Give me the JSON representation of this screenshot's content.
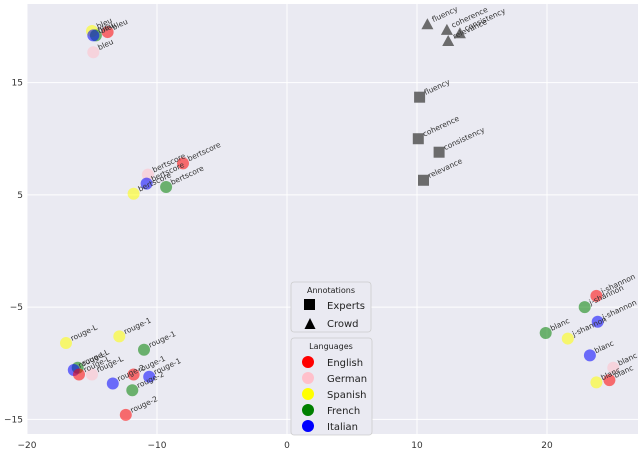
{
  "chart_data": {
    "type": "scatter",
    "xlim": [
      -20,
      27
    ],
    "ylim": [
      -16.3,
      22
    ],
    "x_ticks": [
      -20,
      -10,
      0,
      10,
      20
    ],
    "x_tick_labels": [
      "−20",
      "−10",
      "0",
      "10",
      "20"
    ],
    "y_ticks": [
      -15,
      -5,
      5,
      15
    ],
    "y_tick_labels": [
      "−15",
      "−5",
      "5",
      "15"
    ],
    "grid": true,
    "background": "#eaeaf2",
    "legends": {
      "annotations": {
        "title": "Annotations",
        "items": [
          {
            "label": "Experts",
            "marker": "square"
          },
          {
            "label": "Crowd",
            "marker": "triangle"
          }
        ]
      },
      "languages": {
        "title": "Languages",
        "items": [
          {
            "label": "English",
            "color": "#ff0000"
          },
          {
            "label": "German",
            "color": "#ffc0cb"
          },
          {
            "label": "Spanish",
            "color": "#ffff00"
          },
          {
            "label": "French",
            "color": "#008000"
          },
          {
            "label": "Italian",
            "color": "#0000ff"
          }
        ]
      }
    },
    "points": [
      {
        "x": -15.0,
        "y": 19.6,
        "label": "bleu",
        "lang": "Spanish",
        "color": "#ffff00",
        "marker": "circle"
      },
      {
        "x": -14.7,
        "y": 19.2,
        "label": "bleu",
        "lang": "French",
        "color": "#008000",
        "marker": "circle"
      },
      {
        "x": -14.9,
        "y": 19.2,
        "label": "bleu",
        "lang": "Italian",
        "color": "#0000ff",
        "marker": "circle"
      },
      {
        "x": -13.8,
        "y": 19.5,
        "label": "bleu",
        "lang": "English",
        "color": "#ff0000",
        "marker": "circle"
      },
      {
        "x": -14.9,
        "y": 17.7,
        "label": "bleu",
        "lang": "German",
        "color": "#ffc0cb",
        "marker": "circle"
      },
      {
        "x": -8.0,
        "y": 7.8,
        "label": "bertscore",
        "lang": "English",
        "color": "#ff0000",
        "marker": "circle"
      },
      {
        "x": -10.7,
        "y": 6.8,
        "label": "bertscore",
        "lang": "German",
        "color": "#ffc0cb",
        "marker": "circle"
      },
      {
        "x": -10.8,
        "y": 6.0,
        "label": "bertscore",
        "lang": "Italian",
        "color": "#0000ff",
        "marker": "circle"
      },
      {
        "x": -11.8,
        "y": 5.1,
        "label": "bertscore",
        "lang": "Spanish",
        "color": "#ffff00",
        "marker": "circle"
      },
      {
        "x": -9.3,
        "y": 5.7,
        "label": "bertscore",
        "lang": "French",
        "color": "#008000",
        "marker": "circle"
      },
      {
        "x": -17.0,
        "y": -8.2,
        "label": "rouge-L",
        "lang": "Spanish",
        "color": "#ffff00",
        "marker": "circle"
      },
      {
        "x": -12.9,
        "y": -7.6,
        "label": "rouge-1",
        "lang": "Spanish",
        "color": "#ffff00",
        "marker": "circle"
      },
      {
        "x": -11.0,
        "y": -8.8,
        "label": "rouge-1",
        "lang": "French",
        "color": "#008000",
        "marker": "circle"
      },
      {
        "x": -16.1,
        "y": -10.4,
        "label": "rouge-L",
        "lang": "French",
        "color": "#008000",
        "marker": "circle"
      },
      {
        "x": -16.4,
        "y": -10.6,
        "label": "rouge-L",
        "lang": "Italian",
        "color": "#0000ff",
        "marker": "circle"
      },
      {
        "x": -16.0,
        "y": -11.0,
        "label": "rouge-L",
        "lang": "English",
        "color": "#ff0000",
        "marker": "circle"
      },
      {
        "x": -15.0,
        "y": -11.0,
        "label": "rouge-L",
        "lang": "German",
        "color": "#ffc0cb",
        "marker": "circle"
      },
      {
        "x": -11.8,
        "y": -11.0,
        "label": "rouge-1",
        "lang": "English",
        "color": "#ff0000",
        "marker": "circle"
      },
      {
        "x": -10.6,
        "y": -11.2,
        "label": "rouge-1",
        "lang": "Italian",
        "color": "#0000ff",
        "marker": "circle"
      },
      {
        "x": -13.4,
        "y": -11.8,
        "label": "rouge-2",
        "lang": "Italian",
        "color": "#0000ff",
        "marker": "circle"
      },
      {
        "x": -11.9,
        "y": -12.4,
        "label": "rouge-2",
        "lang": "French",
        "color": "#008000",
        "marker": "circle"
      },
      {
        "x": -12.4,
        "y": -14.6,
        "label": "rouge-2",
        "lang": "English",
        "color": "#ff0000",
        "marker": "circle"
      },
      {
        "x": 10.8,
        "y": 20.2,
        "label": "fluency",
        "marker": "triangle",
        "color": "#555555"
      },
      {
        "x": 12.3,
        "y": 19.7,
        "label": "coherence",
        "marker": "triangle",
        "color": "#555555"
      },
      {
        "x": 13.3,
        "y": 19.4,
        "label": "consistency",
        "marker": "triangle",
        "color": "#555555"
      },
      {
        "x": 12.4,
        "y": 18.7,
        "label": "relevance",
        "marker": "triangle",
        "color": "#555555"
      },
      {
        "x": 10.2,
        "y": 13.7,
        "label": "fluency",
        "marker": "square",
        "color": "#555555"
      },
      {
        "x": 10.1,
        "y": 10.0,
        "label": "coherence",
        "marker": "square",
        "color": "#555555"
      },
      {
        "x": 11.7,
        "y": 8.8,
        "label": "consistency",
        "marker": "square",
        "color": "#555555"
      },
      {
        "x": 10.5,
        "y": 6.3,
        "label": "relevance",
        "marker": "square",
        "color": "#555555"
      },
      {
        "x": 23.8,
        "y": -4.0,
        "label": "j-shannon",
        "lang": "English",
        "color": "#ff0000",
        "marker": "circle"
      },
      {
        "x": 22.9,
        "y": -5.0,
        "label": "j-shannon",
        "lang": "French",
        "color": "#008000",
        "marker": "circle"
      },
      {
        "x": 23.9,
        "y": -6.3,
        "label": "j-shannon",
        "lang": "Italian",
        "color": "#0000ff",
        "marker": "circle"
      },
      {
        "x": 19.9,
        "y": -7.3,
        "label": "blanc",
        "lang": "French",
        "color": "#008000",
        "marker": "circle"
      },
      {
        "x": 21.6,
        "y": -7.8,
        "label": "j-shannon",
        "lang": "Spanish",
        "color": "#ffff00",
        "marker": "circle"
      },
      {
        "x": 23.3,
        "y": -9.3,
        "label": "blanc",
        "lang": "Italian",
        "color": "#0000ff",
        "marker": "circle"
      },
      {
        "x": 25.1,
        "y": -10.4,
        "label": "blanc",
        "lang": "German",
        "color": "#ffc0cb",
        "marker": "circle"
      },
      {
        "x": 24.8,
        "y": -11.5,
        "label": "blanc",
        "lang": "English",
        "color": "#ff0000",
        "marker": "circle"
      },
      {
        "x": 23.8,
        "y": -11.7,
        "label": "blanc",
        "lang": "Spanish",
        "color": "#ffff00",
        "marker": "circle"
      }
    ]
  }
}
